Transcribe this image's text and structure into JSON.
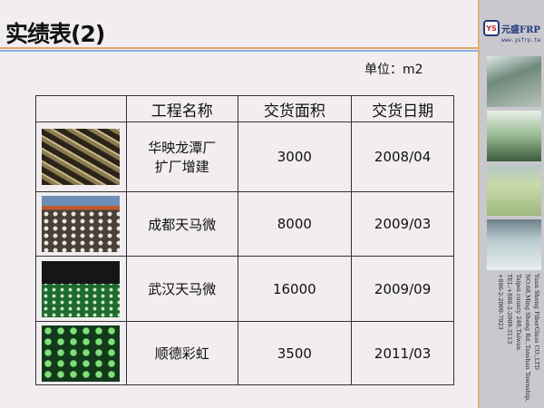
{
  "title": "实绩表(2)",
  "unit": "单位：m2",
  "sidebar": {
    "logo": {
      "mark": "YS",
      "name": "元盛FRP",
      "url": "www.ysfrp.tw"
    },
    "address": [
      "Yuan Sheng FiberGlass CO.,LTD",
      "NO.68,Ming Sheng Rd.,Tanshan Township,",
      "Taipei county 240,Taiwan",
      "TEL:+886-2-2009-3113",
      "+886-2-2009-7923"
    ]
  },
  "table": {
    "headers": [
      "",
      "工程名称",
      "交货面积",
      "交货日期"
    ],
    "rows": [
      {
        "name": [
          "华映龙潭厂",
          "扩厂增建"
        ],
        "area": "3000",
        "date": "2008/04"
      },
      {
        "name": [
          "成都天马微"
        ],
        "area": "8000",
        "date": "2009/03"
      },
      {
        "name": [
          "武汉天马微"
        ],
        "area": "16000",
        "date": "2009/09"
      },
      {
        "name": [
          "顺德彩虹"
        ],
        "area": "3500",
        "date": "2011/03"
      }
    ]
  }
}
